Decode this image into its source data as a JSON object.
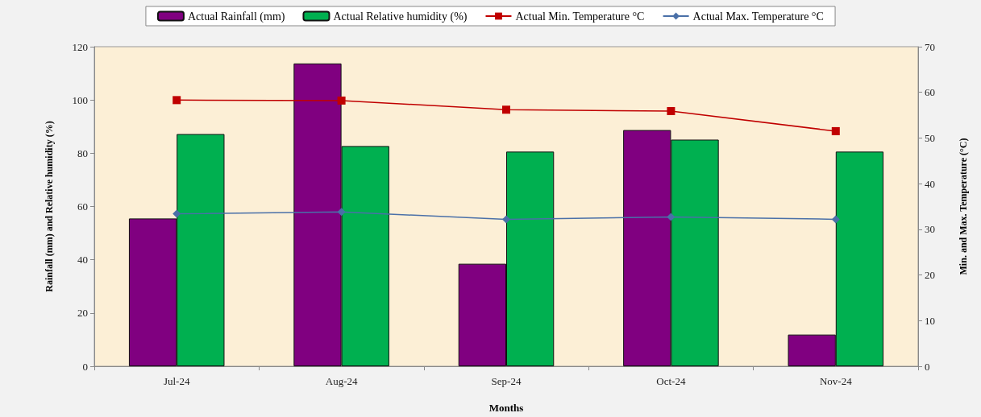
{
  "chart_data": {
    "type": "bar",
    "xlabel": "Months",
    "ylabel": "Rainfall (mm) and Relative humidity (%)",
    "y2label": "Min. and Max. Temperature (°C)",
    "categories": [
      "Jul-24",
      "Aug-24",
      "Sep-24",
      "Oct-24",
      "Nov-24"
    ],
    "series": [
      {
        "name": "Actual Rainfall (mm)",
        "color": "#800080",
        "values": [
          55.5,
          113.7,
          38.5,
          88.7,
          11.9
        ]
      },
      {
        "name": "Actual Relative humidity (%)",
        "color": "#00b050",
        "values": [
          87.2,
          82.7,
          80.6,
          85.1,
          80.6
        ]
      },
      {
        "name": "Actual Min. Temperature °C",
        "type": "line",
        "axis": "y2",
        "marker": "square",
        "color": "#c00000",
        "values": [
          58.3,
          58.2,
          56.2,
          55.9,
          51.5
        ]
      },
      {
        "name": "Actual Max. Temperature °C",
        "type": "line",
        "axis": "y2",
        "marker": "diamond",
        "color": "#4a70a8",
        "values": [
          33.4,
          33.8,
          32.2,
          32.7,
          32.2
        ]
      }
    ],
    "ylim": [
      0,
      120
    ],
    "yticks": [
      0,
      20,
      40,
      60,
      80,
      100,
      120
    ],
    "y2lim": [
      0,
      70
    ],
    "y2ticks": [
      0,
      10,
      20,
      30,
      40,
      50,
      60,
      70
    ],
    "grid": false,
    "legend": "top"
  }
}
